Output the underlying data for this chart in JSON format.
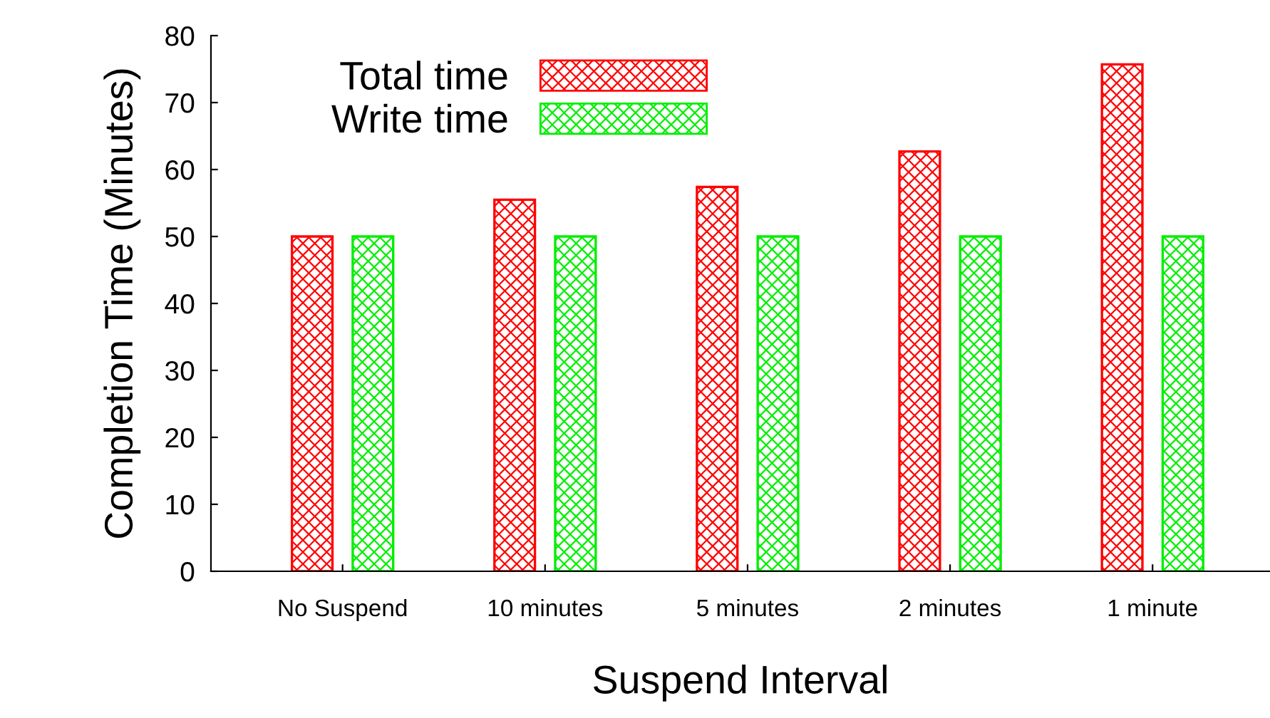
{
  "chart_data": {
    "type": "bar",
    "xlabel": "Suspend Interval",
    "ylabel": "Completion Time (Minutes)",
    "categories": [
      "No Suspend",
      "10 minutes",
      "5 minutes",
      "2 minutes",
      "1 minute"
    ],
    "series": [
      {
        "name": "Total time",
        "color": "#ff0000",
        "values": [
          50,
          55.5,
          57.4,
          62.7,
          75.7
        ]
      },
      {
        "name": "Write time",
        "color": "#00ee00",
        "values": [
          50,
          50,
          50,
          50,
          50
        ]
      }
    ],
    "ylim": [
      0,
      80
    ],
    "yticks": [
      0,
      10,
      20,
      30,
      40,
      50,
      60,
      70,
      80
    ],
    "grid": false,
    "legend": "top left"
  }
}
